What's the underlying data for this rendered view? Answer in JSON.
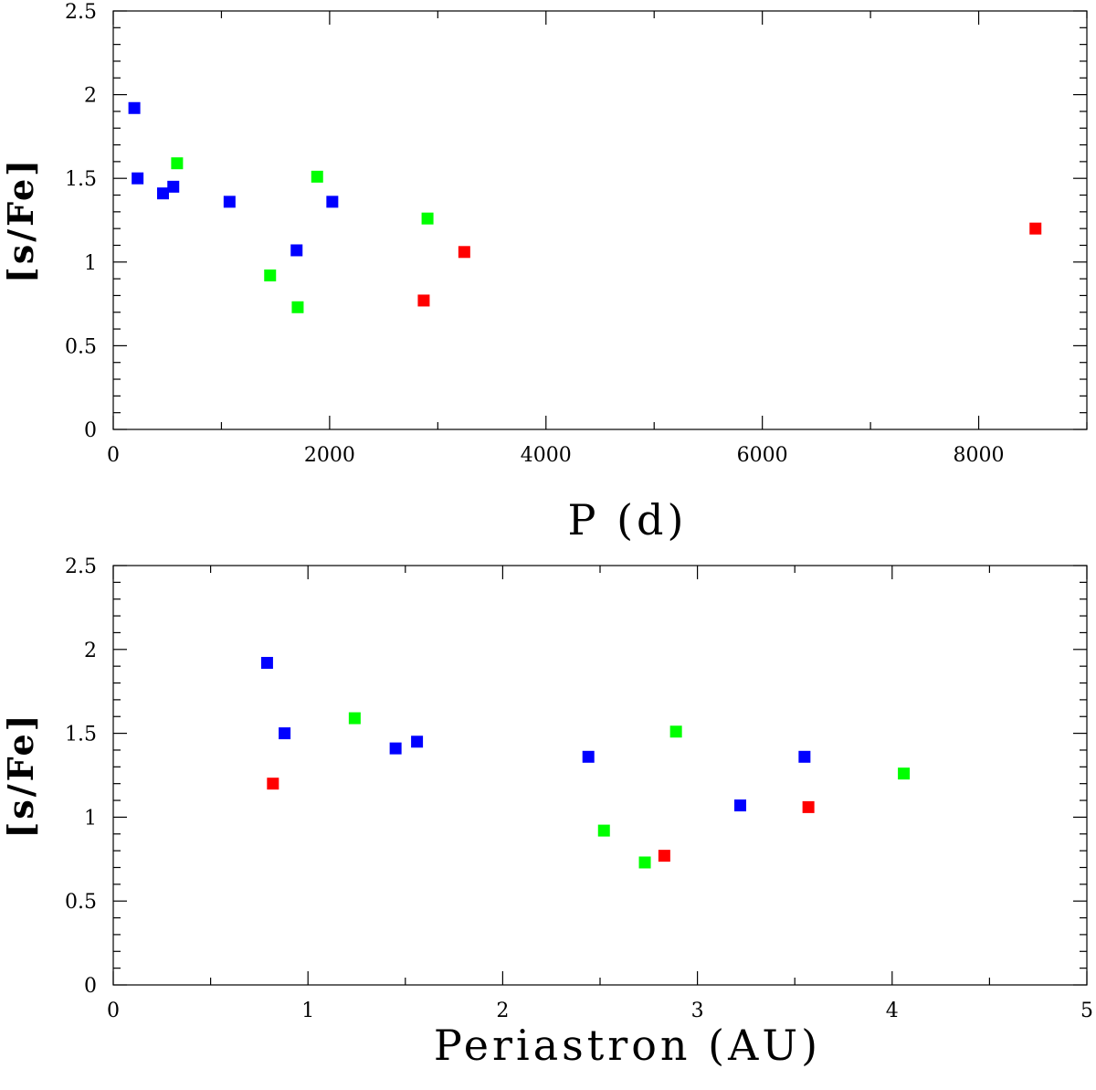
{
  "series_colors": {
    "blue": "#0000ff",
    "green": "#00ff00",
    "red": "#ff0000"
  },
  "chart_data": [
    {
      "type": "scatter",
      "xlabel": "P (d)",
      "ylabel": "[s/Fe]",
      "xlim": [
        0,
        9000
      ],
      "ylim": [
        0,
        2.5
      ],
      "x_ticks": [
        0,
        2000,
        4000,
        6000,
        8000
      ],
      "x_tick_labels": [
        "0",
        "2000",
        "4000",
        "6000",
        "8000"
      ],
      "x_minor_step": 1000,
      "y_ticks": [
        0,
        0.5,
        1,
        1.5,
        2,
        2.5
      ],
      "y_tick_labels": [
        "0",
        "0.5",
        "1",
        "1.5",
        "2",
        "2.5"
      ],
      "y_minor_step": 0.1,
      "series": [
        {
          "name": "blue",
          "color": "blue",
          "points": [
            [
              195,
              1.92
            ],
            [
              225,
              1.5
            ],
            [
              460,
              1.41
            ],
            [
              555,
              1.45
            ],
            [
              1075,
              1.36
            ],
            [
              1695,
              1.07
            ],
            [
              2025,
              1.36
            ]
          ]
        },
        {
          "name": "green",
          "color": "green",
          "points": [
            [
              590,
              1.59
            ],
            [
              1450,
              0.92
            ],
            [
              1705,
              0.73
            ],
            [
              1885,
              1.51
            ],
            [
              2905,
              1.26
            ]
          ]
        },
        {
          "name": "red",
          "color": "red",
          "points": [
            [
              2870,
              0.77
            ],
            [
              3245,
              1.06
            ],
            [
              8525,
              1.2
            ]
          ]
        }
      ]
    },
    {
      "type": "scatter",
      "xlabel": "Periastron (AU)",
      "ylabel": "[s/Fe]",
      "xlim": [
        0,
        5
      ],
      "ylim": [
        0,
        2.5
      ],
      "x_ticks": [
        0,
        1,
        2,
        3,
        4,
        5
      ],
      "x_tick_labels": [
        "0",
        "1",
        "2",
        "3",
        "4",
        "5"
      ],
      "x_minor_step": 0.5,
      "y_ticks": [
        0,
        0.5,
        1,
        1.5,
        2,
        2.5
      ],
      "y_tick_labels": [
        "0",
        "0.5",
        "1",
        "1.5",
        "2",
        "2.5"
      ],
      "y_minor_step": 0.1,
      "series": [
        {
          "name": "blue",
          "color": "blue",
          "points": [
            [
              0.79,
              1.92
            ],
            [
              0.88,
              1.5
            ],
            [
              1.45,
              1.41
            ],
            [
              1.56,
              1.45
            ],
            [
              2.44,
              1.36
            ],
            [
              3.22,
              1.07
            ],
            [
              3.55,
              1.36
            ]
          ]
        },
        {
          "name": "green",
          "color": "green",
          "points": [
            [
              1.24,
              1.59
            ],
            [
              2.52,
              0.92
            ],
            [
              2.73,
              0.73
            ],
            [
              2.89,
              1.51
            ],
            [
              4.06,
              1.26
            ]
          ]
        },
        {
          "name": "red",
          "color": "red",
          "points": [
            [
              0.82,
              1.2
            ],
            [
              2.83,
              0.77
            ],
            [
              3.57,
              1.06
            ]
          ]
        }
      ]
    }
  ]
}
